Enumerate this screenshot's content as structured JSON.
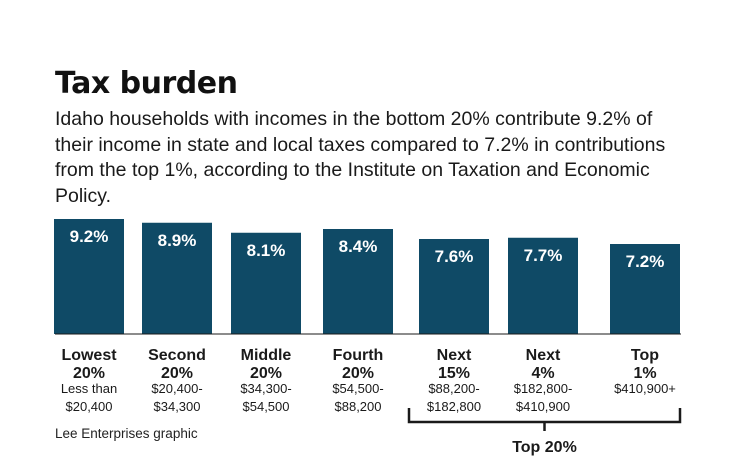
{
  "title": "Tax burden",
  "subtitle": "Idaho households with incomes in the bottom 20% contribute 9.2% of their income in state and local taxes compared to 7.2% in contributions from the top 1%, according to the Institute on Taxation and Economic Policy.",
  "credit": "Lee Enterprises graphic",
  "colors": {
    "bar": "#0f4a66",
    "bar_label": "#ffffff",
    "text": "#1a1a1a",
    "axis": "#1a1a1a"
  },
  "chart_data": {
    "type": "bar",
    "categories": [
      {
        "name1": "Lowest",
        "name2": "20%",
        "range1": "Less than",
        "range2": "$20,400"
      },
      {
        "name1": "Second",
        "name2": "20%",
        "range1": "$20,400-",
        "range2": "$34,300"
      },
      {
        "name1": "Middle",
        "name2": "20%",
        "range1": "$34,300-",
        "range2": "$54,500"
      },
      {
        "name1": "Fourth",
        "name2": "20%",
        "range1": "$54,500-",
        "range2": "$88,200"
      },
      {
        "name1": "Next",
        "name2": "15%",
        "range1": "$88,200-",
        "range2": "$182,800"
      },
      {
        "name1": "Next",
        "name2": "4%",
        "range1": "$182,800-",
        "range2": "$410,900"
      },
      {
        "name1": "Top",
        "name2": "1%",
        "range1": "$410,900+",
        "range2": ""
      }
    ],
    "values": [
      9.2,
      8.9,
      8.1,
      8.4,
      7.6,
      7.7,
      7.2
    ],
    "value_labels": [
      "9.2%",
      "8.9%",
      "8.1%",
      "8.4%",
      "7.6%",
      "7.7%",
      "7.2%"
    ],
    "bracket": {
      "label": "Top 20%",
      "from": 4,
      "to": 6
    }
  }
}
